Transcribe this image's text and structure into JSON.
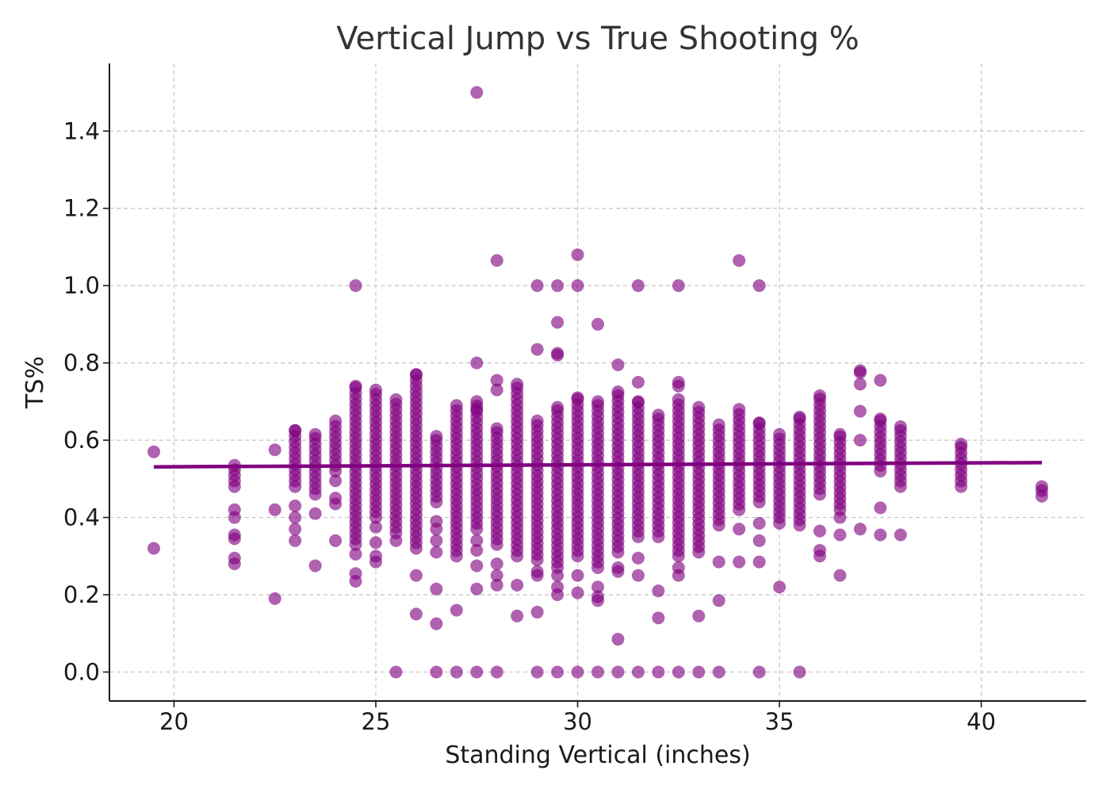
{
  "chart_data": {
    "type": "scatter",
    "title": "Vertical Jump vs True Shooting %",
    "xlabel": "Standing Vertical (inches)",
    "ylabel": "TS%",
    "xlim": [
      18.4,
      42.6
    ],
    "ylim": [
      -0.075,
      1.575
    ],
    "xticks": [
      20,
      25,
      30,
      35,
      40
    ],
    "yticks": [
      0.0,
      0.2,
      0.4,
      0.6,
      0.8,
      1.0,
      1.2,
      1.4
    ],
    "xtick_labels": [
      "20",
      "25",
      "30",
      "35",
      "40"
    ],
    "ytick_labels": [
      "0.0",
      "0.2",
      "0.4",
      "0.6",
      "0.8",
      "1.0",
      "1.2",
      "1.4"
    ],
    "grid": true,
    "legend": "none",
    "colors": {
      "points": "#800080",
      "trend": "#800080"
    },
    "trendline": {
      "x": [
        19.5,
        41.5
      ],
      "y": [
        0.531,
        0.542
      ]
    },
    "columns": [
      {
        "x": 19.5,
        "min": 0.57,
        "max": 0.57,
        "extra": [
          0.32
        ]
      },
      {
        "x": 21.5,
        "min": 0.48,
        "max": 0.535,
        "extra": [
          0.42,
          0.4,
          0.355,
          0.345,
          0.295,
          0.28
        ]
      },
      {
        "x": 22.5,
        "min": 0.575,
        "max": 0.575,
        "extra": [
          0.42,
          0.19
        ]
      },
      {
        "x": 23.0,
        "min": 0.48,
        "max": 0.625,
        "extra": [
          0.43,
          0.4,
          0.37,
          0.34
        ]
      },
      {
        "x": 23.5,
        "min": 0.46,
        "max": 0.615,
        "extra": [
          0.41,
          0.275
        ]
      },
      {
        "x": 24.0,
        "min": 0.52,
        "max": 0.65,
        "extra": [
          0.495,
          0.45,
          0.435,
          0.34
        ]
      },
      {
        "x": 24.5,
        "min": 0.33,
        "max": 0.74,
        "extra": [
          1.0,
          0.305,
          0.255,
          0.235
        ]
      },
      {
        "x": 25.0,
        "min": 0.4,
        "max": 0.73,
        "extra": [
          0.375,
          0.335,
          0.3,
          0.285
        ]
      },
      {
        "x": 25.5,
        "min": 0.36,
        "max": 0.705,
        "extra": [
          0.34,
          0.0
        ]
      },
      {
        "x": 26.0,
        "min": 0.32,
        "max": 0.77,
        "extra": [
          0.25,
          0.15
        ]
      },
      {
        "x": 26.5,
        "min": 0.44,
        "max": 0.61,
        "extra": [
          0.39,
          0.37,
          0.34,
          0.31,
          0.215,
          0.125,
          0.0
        ]
      },
      {
        "x": 27.0,
        "min": 0.3,
        "max": 0.69,
        "extra": [
          0.16,
          0.0
        ]
      },
      {
        "x": 27.5,
        "min": 0.37,
        "max": 0.7,
        "extra": [
          1.5,
          0.8,
          0.68,
          0.34,
          0.315,
          0.275,
          0.215,
          0.0
        ]
      },
      {
        "x": 28.0,
        "min": 0.33,
        "max": 0.63,
        "extra": [
          1.065,
          0.755,
          0.73,
          0.28,
          0.25,
          0.225,
          0.0
        ]
      },
      {
        "x": 28.5,
        "min": 0.3,
        "max": 0.745,
        "extra": [
          0.225,
          0.145
        ]
      },
      {
        "x": 29.0,
        "min": 0.29,
        "max": 0.65,
        "extra": [
          1.0,
          0.835,
          0.26,
          0.25,
          0.155,
          0.0
        ]
      },
      {
        "x": 29.5,
        "min": 0.27,
        "max": 0.685,
        "extra": [
          1.0,
          0.905,
          0.825,
          0.82,
          0.25,
          0.22,
          0.2,
          0.0
        ]
      },
      {
        "x": 30.0,
        "min": 0.3,
        "max": 0.71,
        "extra": [
          1.08,
          1.0,
          0.25,
          0.205,
          0.0
        ]
      },
      {
        "x": 30.5,
        "min": 0.27,
        "max": 0.7,
        "extra": [
          0.9,
          0.22,
          0.195,
          0.185,
          0.0
        ]
      },
      {
        "x": 31.0,
        "min": 0.31,
        "max": 0.725,
        "extra": [
          0.795,
          0.27,
          0.26,
          0.085,
          0.0
        ]
      },
      {
        "x": 31.5,
        "min": 0.35,
        "max": 0.7,
        "extra": [
          1.0,
          0.75,
          0.295,
          0.25,
          0.0
        ]
      },
      {
        "x": 32.0,
        "min": 0.35,
        "max": 0.665,
        "extra": [
          0.21,
          0.14,
          0.0
        ]
      },
      {
        "x": 32.5,
        "min": 0.3,
        "max": 0.705,
        "extra": [
          1.0,
          0.75,
          0.74,
          0.27,
          0.25,
          0.0
        ]
      },
      {
        "x": 33.0,
        "min": 0.31,
        "max": 0.685,
        "extra": [
          0.145,
          0.0
        ]
      },
      {
        "x": 33.5,
        "min": 0.38,
        "max": 0.64,
        "extra": [
          0.285,
          0.185,
          0.0
        ]
      },
      {
        "x": 34.0,
        "min": 0.42,
        "max": 0.68,
        "extra": [
          1.065,
          0.37,
          0.285
        ]
      },
      {
        "x": 34.5,
        "min": 0.44,
        "max": 0.645,
        "extra": [
          1.0,
          0.385,
          0.34,
          0.285,
          0.0
        ]
      },
      {
        "x": 35.0,
        "min": 0.4,
        "max": 0.615,
        "extra": [
          0.385,
          0.22
        ]
      },
      {
        "x": 35.5,
        "min": 0.38,
        "max": 0.66,
        "extra": [
          0.0
        ]
      },
      {
        "x": 36.0,
        "min": 0.46,
        "max": 0.715,
        "extra": [
          0.365,
          0.315,
          0.3
        ]
      },
      {
        "x": 36.5,
        "min": 0.42,
        "max": 0.615,
        "extra": [
          0.4,
          0.355,
          0.25
        ]
      },
      {
        "x": 37.0,
        "min": 0.6,
        "max": 0.6,
        "extra": [
          0.78,
          0.775,
          0.745,
          0.675,
          0.37
        ]
      },
      {
        "x": 37.5,
        "min": 0.52,
        "max": 0.655,
        "extra": [
          0.755,
          0.425,
          0.355
        ]
      },
      {
        "x": 38.0,
        "min": 0.48,
        "max": 0.635,
        "extra": [
          0.355
        ]
      },
      {
        "x": 39.5,
        "min": 0.48,
        "max": 0.59,
        "extra": []
      },
      {
        "x": 41.5,
        "min": 0.455,
        "max": 0.48,
        "extra": []
      }
    ]
  }
}
